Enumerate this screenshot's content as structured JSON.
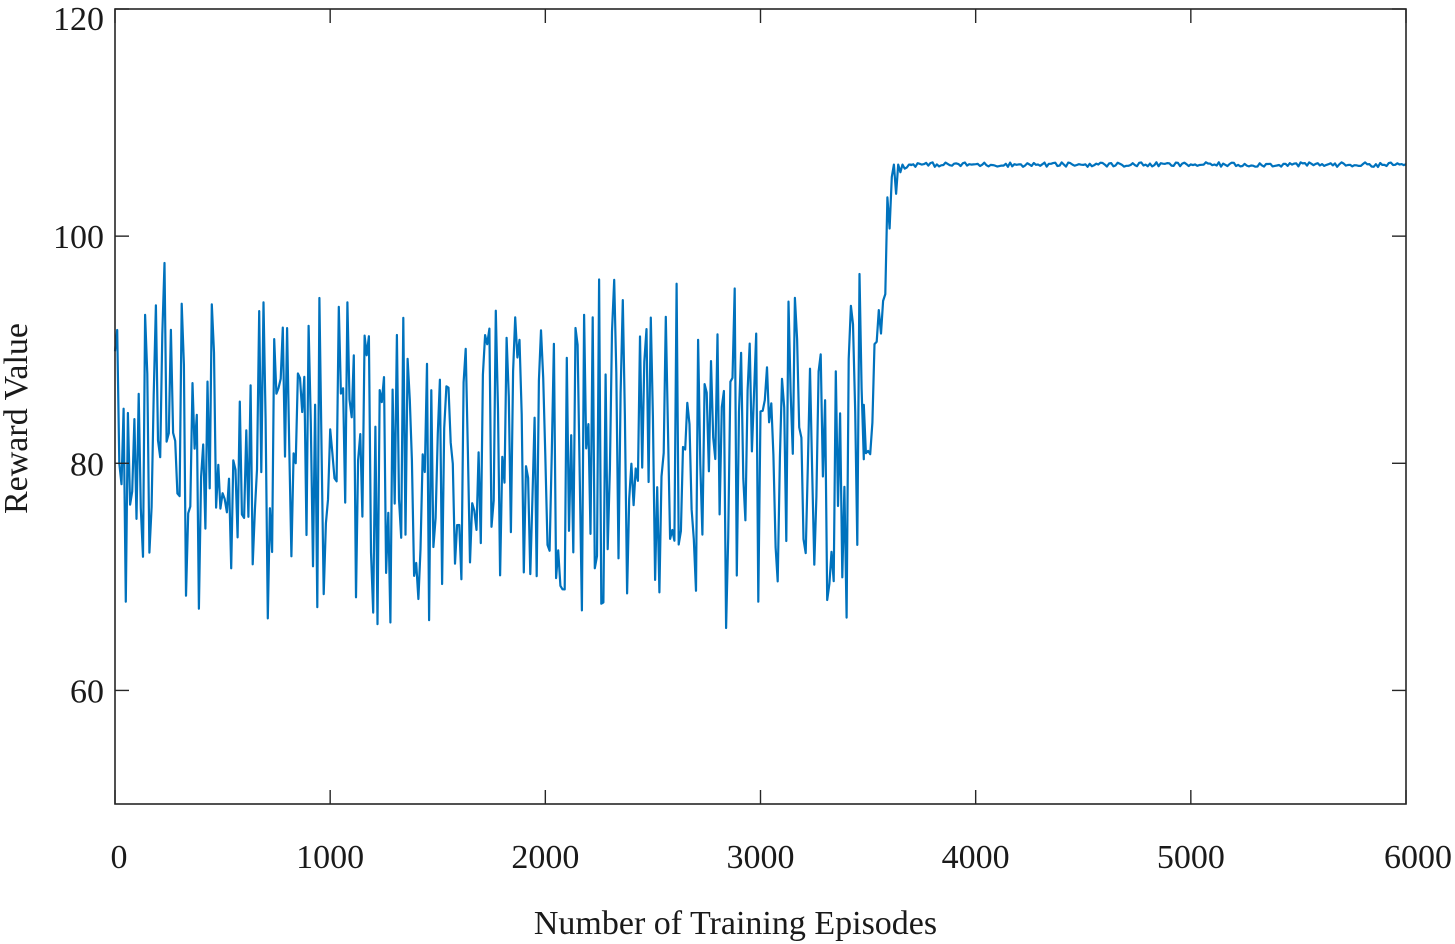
{
  "chart_data": {
    "type": "line",
    "title": "",
    "xlabel": "Number of Training Episodes",
    "ylabel": "Reward Value",
    "xlim": [
      0,
      6000
    ],
    "ylim": [
      50,
      120
    ],
    "x_ticks": [
      0,
      1000,
      2000,
      3000,
      4000,
      5000,
      6000
    ],
    "x_tick_labels": [
      "0",
      "1000",
      "2000",
      "3000",
      "4000",
      "5000",
      "6000"
    ],
    "y_ticks": [
      60,
      80,
      100,
      120
    ],
    "y_tick_labels": [
      "60",
      "80",
      "100",
      "120"
    ],
    "grid": false,
    "legend": "none",
    "series": [
      {
        "color": "#0072BD",
        "x_step": 10,
        "segments": [
          {
            "x_start": 0,
            "x_end": 3480,
            "mean": 80.5,
            "min": 65.5,
            "max": 98.5,
            "noise": "random"
          },
          {
            "x_start": 3480,
            "x_end": 3700,
            "mean": 103.0,
            "min": 80.8,
            "max": 106.3,
            "noise": "transition"
          },
          {
            "x_start": 3700,
            "x_end": 6000,
            "mean": 106.3,
            "min": 106.1,
            "max": 106.5,
            "noise": "steady"
          }
        ]
      }
    ]
  }
}
